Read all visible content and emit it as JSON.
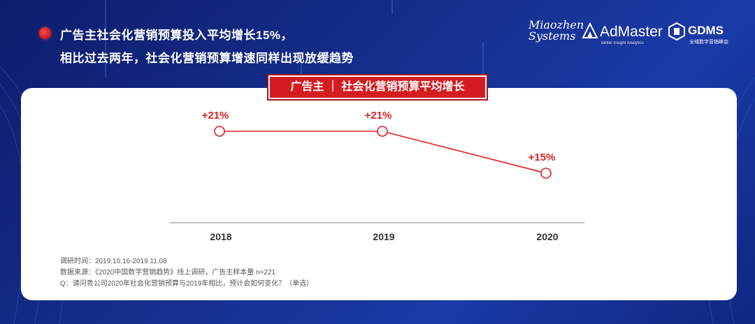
{
  "header": {
    "headline_line1": "广告主社会化营销预算投入平均增长15%，",
    "headline_line2": "相比过去两年，社会化营销预算增速同样出现放缓趋势"
  },
  "logos": {
    "miaozhen_line1": "Miaozhen",
    "miaozhen_line2": "Systems",
    "admaster": "AdMaster",
    "admaster_sub": "Better Insight Analytics",
    "gdms": "GDMS",
    "gdms_sub": "全域数字营销峰会"
  },
  "chart_data": {
    "type": "line",
    "title": "广告主 ｜ 社会化营销预算平均增长",
    "categories": [
      "2018",
      "2019",
      "2020"
    ],
    "series": [
      {
        "values": [
          21,
          21,
          15
        ],
        "labels": [
          "+21%",
          "+21%",
          "+15%"
        ]
      }
    ],
    "ylim": [
      8,
      24
    ],
    "grid": false,
    "colors": {
      "line": "#e02020",
      "marker_fill": "#ffffff",
      "label": "#e02020",
      "tick": "#333333",
      "axis": "#888888"
    }
  },
  "notes": {
    "line1": "调研时间：2019.10.16-2019.11.08",
    "line2": "数据来源：《2020中国数字营销趋势》线上调研，广告主样本量 n=221",
    "line3": "Q：请问贵公司2020年社会化营销预算与2019年相比，预计会如何变化？（单选）"
  }
}
